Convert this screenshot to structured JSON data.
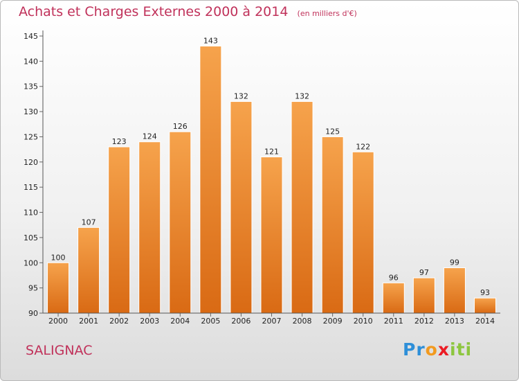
{
  "title": "Achats et Charges Externes 2000 à 2014",
  "unit_note": "(en milliers d'€)",
  "commune": "SALIGNAC",
  "logo": {
    "letters": [
      "P",
      "r",
      "o",
      "x",
      "i",
      "t",
      "i"
    ],
    "colors": [
      "#2e8fd8",
      "#2e8fd8",
      "#f29a1f",
      "#ec1c24",
      "#8dc63f",
      "#8dc63f",
      "#8dc63f"
    ]
  },
  "colors": {
    "bar_light": "#f6a34c",
    "bar_dark": "#d96a14",
    "accent": "#c0315a"
  },
  "chart_data": {
    "type": "bar",
    "title": "Achats et Charges Externes 2000 à 2014",
    "subtitle": "(en milliers d'€)",
    "categories": [
      "2000",
      "2001",
      "2002",
      "2003",
      "2004",
      "2005",
      "2006",
      "2007",
      "2008",
      "2009",
      "2010",
      "2011",
      "2012",
      "2013",
      "2014"
    ],
    "values": [
      100,
      107,
      123,
      124,
      126,
      143,
      132,
      121,
      132,
      125,
      122,
      96,
      97,
      99,
      93
    ],
    "ylim": [
      90,
      145
    ],
    "yticks": [
      90,
      95,
      100,
      105,
      110,
      115,
      120,
      125,
      130,
      135,
      140,
      145
    ],
    "grid": false,
    "legend": "none"
  }
}
